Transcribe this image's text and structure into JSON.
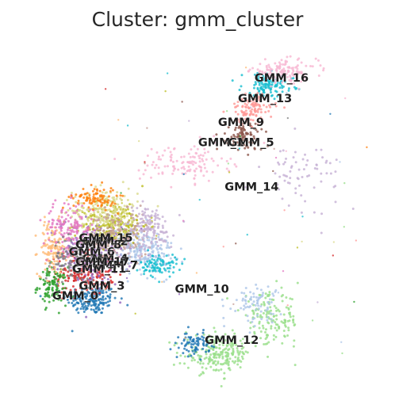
{
  "chart_data": {
    "type": "scatter",
    "title": "Cluster: gmm_cluster",
    "xlabel": "",
    "ylabel": "",
    "axes_visible": false,
    "grid": false,
    "legend": "on data",
    "colors": {
      "GMM_0": "#1f77b4",
      "GMM_1": "#ff7f0e",
      "GMM_2": "#2ca02c",
      "GMM_3": "#d62728",
      "GMM_4": "#9467bd",
      "GMM_5": "#8c564b",
      "GMM_6": "#e377c2",
      "GMM_7": "#7f7f7f",
      "GMM_8": "#bcbd22",
      "GMM_9": "#17becf",
      "GMM_10": "#aec7e8",
      "GMM_11": "#ffbb78",
      "GMM_12": "#98df8a",
      "GMM_13": "#ff9896",
      "GMM_14": "#c5b0d5",
      "GMM_15": "#c49c94",
      "GMM_16": "#f7b6d2",
      "GMM_17": "#dbdb8d"
    },
    "labels": [
      {
        "name": "GMM_0",
        "x": 0.05,
        "y": 0.26
      },
      {
        "name": "GMM_1",
        "x": 0.49,
        "y": 0.71
      },
      {
        "name": "GMM_2",
        "x": 0.14,
        "y": 0.42
      },
      {
        "name": "GMM_3",
        "x": 0.13,
        "y": 0.29
      },
      {
        "name": "GMM_4",
        "x": 0.14,
        "y": 0.37
      },
      {
        "name": "GMM_5",
        "x": 0.58,
        "y": 0.71
      },
      {
        "name": "GMM_6",
        "x": 0.1,
        "y": 0.39
      },
      {
        "name": "GMM_7",
        "x": 0.17,
        "y": 0.35
      },
      {
        "name": "GMM_8",
        "x": 0.12,
        "y": 0.41
      },
      {
        "name": "GMM_9",
        "x": 0.55,
        "y": 0.77
      },
      {
        "name": "GMM_10",
        "x": 0.42,
        "y": 0.28
      },
      {
        "name": "GMM_11",
        "x": 0.11,
        "y": 0.34
      },
      {
        "name": "GMM_12",
        "x": 0.51,
        "y": 0.13
      },
      {
        "name": "GMM_13",
        "x": 0.61,
        "y": 0.84
      },
      {
        "name": "GMM_14",
        "x": 0.57,
        "y": 0.58
      },
      {
        "name": "GMM_15",
        "x": 0.13,
        "y": 0.43
      },
      {
        "name": "GMM_16",
        "x": 0.66,
        "y": 0.9
      },
      {
        "name": "GMM_17",
        "x": 0.12,
        "y": 0.36
      }
    ]
  }
}
